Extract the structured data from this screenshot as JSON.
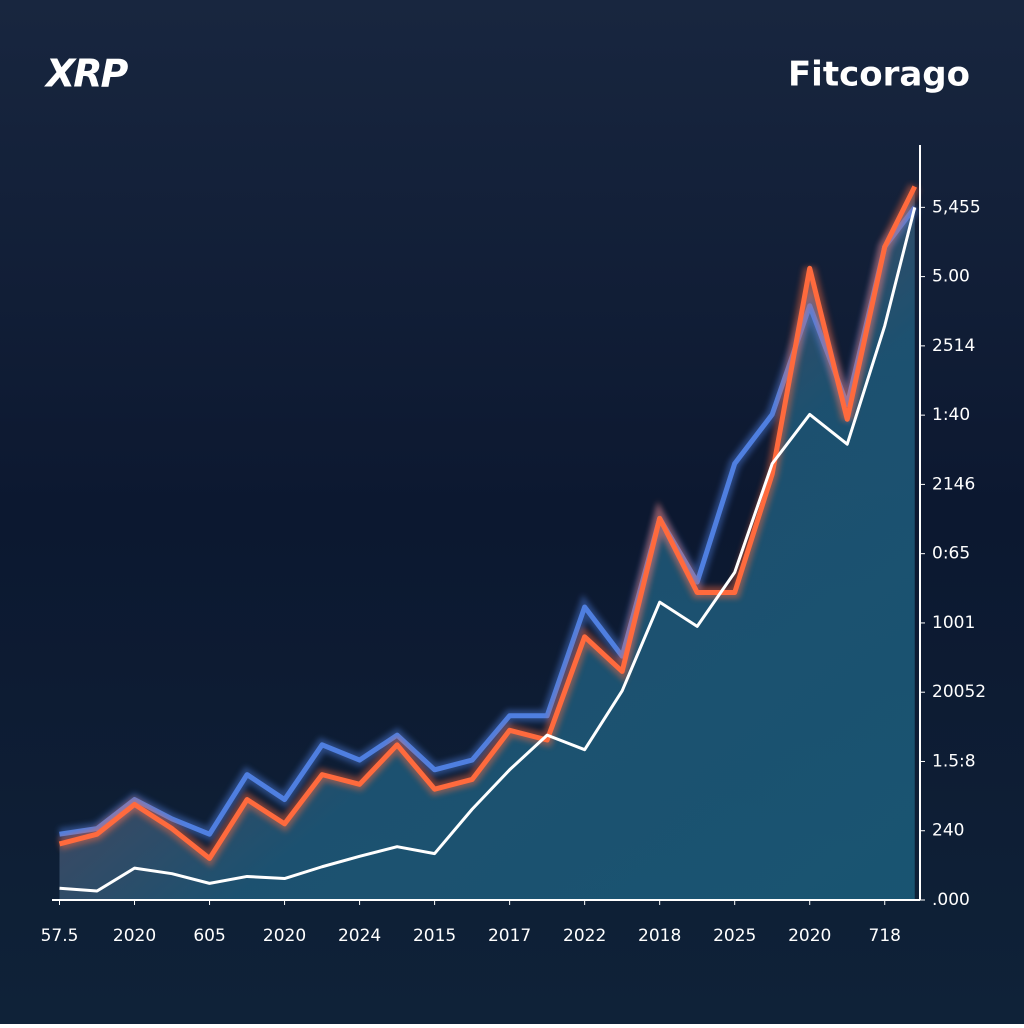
{
  "chart_data": {
    "type": "line",
    "title": "XRP",
    "brand": "Fitcorago",
    "x": [
      0,
      0.5,
      1,
      1.5,
      2,
      2.5,
      3,
      3.5,
      4,
      4.5,
      5,
      5.5,
      6,
      6.5,
      7,
      7.5,
      8,
      8.5,
      9,
      9.5,
      10,
      10.5,
      11,
      11.4
    ],
    "series": [
      {
        "color": "#4f7fe0",
        "values": [
          0.95,
          1.03,
          1.45,
          1.17,
          0.95,
          1.81,
          1.45,
          2.24,
          2.02,
          2.38,
          1.88,
          2.02,
          2.66,
          2.66,
          4.23,
          3.52,
          5.51,
          4.59,
          6.3,
          7.01,
          8.58,
          7.15,
          9.43,
          10.0
        ]
      },
      {
        "color": "#ff6a3d",
        "values": [
          0.81,
          0.95,
          1.38,
          1.03,
          0.6,
          1.45,
          1.1,
          1.81,
          1.67,
          2.24,
          1.6,
          1.74,
          2.45,
          2.31,
          3.8,
          3.3,
          5.51,
          4.44,
          4.44,
          6.15,
          9.12,
          6.94,
          9.43,
          10.3
        ]
      },
      {
        "color": "#ffffff",
        "values": [
          0.17,
          0.13,
          0.46,
          0.38,
          0.24,
          0.34,
          0.31,
          0.48,
          0.63,
          0.77,
          0.67,
          1.31,
          1.88,
          2.38,
          2.17,
          3.02,
          4.3,
          3.95,
          4.73,
          6.3,
          7.01,
          6.58,
          8.29,
          10.0
        ]
      }
    ],
    "xlim": [
      -0.1,
      11.47
    ],
    "xticks": [
      {
        "value": 0,
        "label": "57.5"
      },
      {
        "value": 1,
        "label": "2020"
      },
      {
        "value": 2,
        "label": "605"
      },
      {
        "value": 3,
        "label": "2020"
      },
      {
        "value": 4,
        "label": "2024"
      },
      {
        "value": 5,
        "label": "2015"
      },
      {
        "value": 6,
        "label": "2017"
      },
      {
        "value": 7,
        "label": "2022"
      },
      {
        "value": 8,
        "label": "2018"
      },
      {
        "value": 9,
        "label": "2025"
      },
      {
        "value": 10,
        "label": "2020"
      },
      {
        "value": 11,
        "label": "718"
      }
    ],
    "ylim": [
      0,
      10.9
    ],
    "yticks": [
      {
        "value": 0,
        "label": ".000"
      },
      {
        "value": 1,
        "label": "240"
      },
      {
        "value": 2,
        "label": "1.5:8"
      },
      {
        "value": 3,
        "label": "20052"
      },
      {
        "value": 4,
        "label": "1001"
      },
      {
        "value": 5,
        "label": "0:65"
      },
      {
        "value": 6,
        "label": "2146"
      },
      {
        "value": 7,
        "label": "1:40"
      },
      {
        "value": 8,
        "label": "2514"
      },
      {
        "value": 9,
        "label": "5.00"
      },
      {
        "value": 10,
        "label": "5,455"
      }
    ]
  }
}
